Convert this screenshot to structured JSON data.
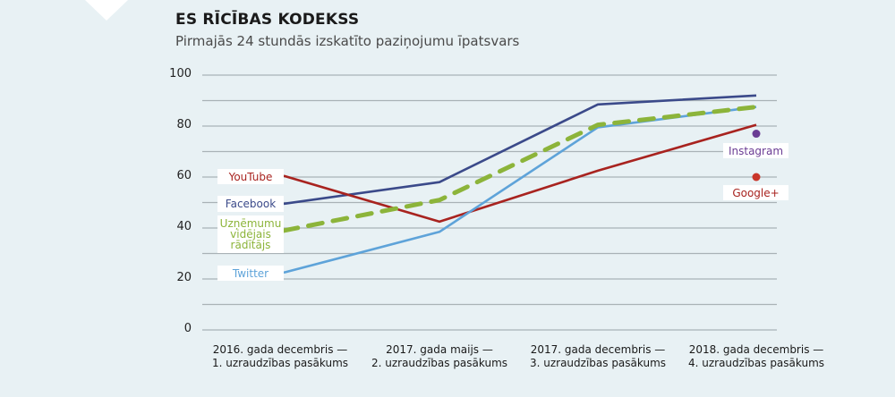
{
  "header": {
    "title": "ES RĪCĪBAS KODEKSS",
    "subtitle": "Pirmajās 24 stundās izskatīto paziņojumu īpatsvars"
  },
  "colors": {
    "background": "#e8f1f4",
    "gridline": "#a9b2b6",
    "youtube": "#a8231f",
    "facebook": "#3b4a8a",
    "twitter": "#5ea3d9",
    "average": "#8cb43a",
    "instagram": "#6b3d94",
    "googleplus": "#c9362a"
  },
  "y_ticks": [
    "100",
    "80",
    "60",
    "40",
    "20",
    "0"
  ],
  "x_labels": [
    {
      "line1": "2016. gada decembris —",
      "line2": "1. uzraudzības pasākums"
    },
    {
      "line1": "2017. gada maijs —",
      "line2": "2. uzraudzības pasākums"
    },
    {
      "line1": "2017. gada decembris —",
      "line2": "3. uzraudzības pasākums"
    },
    {
      "line1": "2018. gada decembris —",
      "line2": "4. uzraudzības pasākums"
    }
  ],
  "labels": {
    "youtube": "YouTube",
    "facebook": "Facebook",
    "average_l1": "Uzņēmumu",
    "average_l2": "vidējais",
    "average_l3": "rādītājs",
    "twitter": "Twitter",
    "instagram": "Instagram",
    "googleplus": "Google+"
  },
  "chart_data": {
    "type": "line",
    "title": "ES RĪCĪBAS KODEKSS",
    "subtitle": "Pirmajās 24 stundās izskatīto paziņojumu īpatsvars",
    "xlabel": "",
    "ylabel": "",
    "ylim": [
      0,
      100
    ],
    "yticks": [
      0,
      20,
      40,
      60,
      80,
      100
    ],
    "grid": true,
    "gridlines_every": 10,
    "legend_position": "inline labels at line starts",
    "categories": [
      "2016. gada decembris — 1. uzraudzības pasākums",
      "2017. gada maijs — 2. uzraudzības pasākums",
      "2017. gada decembris — 3. uzraudzības pasākums",
      "2018. gada decembris — 4. uzraudzības pasākums"
    ],
    "series": [
      {
        "name": "YouTube",
        "color": "#a8231f",
        "style": "solid",
        "values": [
          60.5,
          42.5,
          62.5,
          80.5
        ]
      },
      {
        "name": "Facebook",
        "color": "#3b4a8a",
        "style": "solid",
        "values": [
          49.5,
          58,
          88.5,
          92
        ]
      },
      {
        "name": "Uzņēmumu vidējais rādītājs",
        "color": "#8cb43a",
        "style": "dashed",
        "values": [
          39,
          51,
          80.5,
          87.5
        ]
      },
      {
        "name": "Twitter",
        "color": "#5ea3d9",
        "style": "solid",
        "values": [
          22.5,
          38.5,
          79.5,
          87.5
        ]
      },
      {
        "name": "Instagram",
        "color": "#6b3d94",
        "style": "point",
        "values": [
          null,
          null,
          null,
          77
        ]
      },
      {
        "name": "Google+",
        "color": "#c9362a",
        "style": "point",
        "values": [
          null,
          null,
          null,
          60
        ]
      }
    ]
  }
}
